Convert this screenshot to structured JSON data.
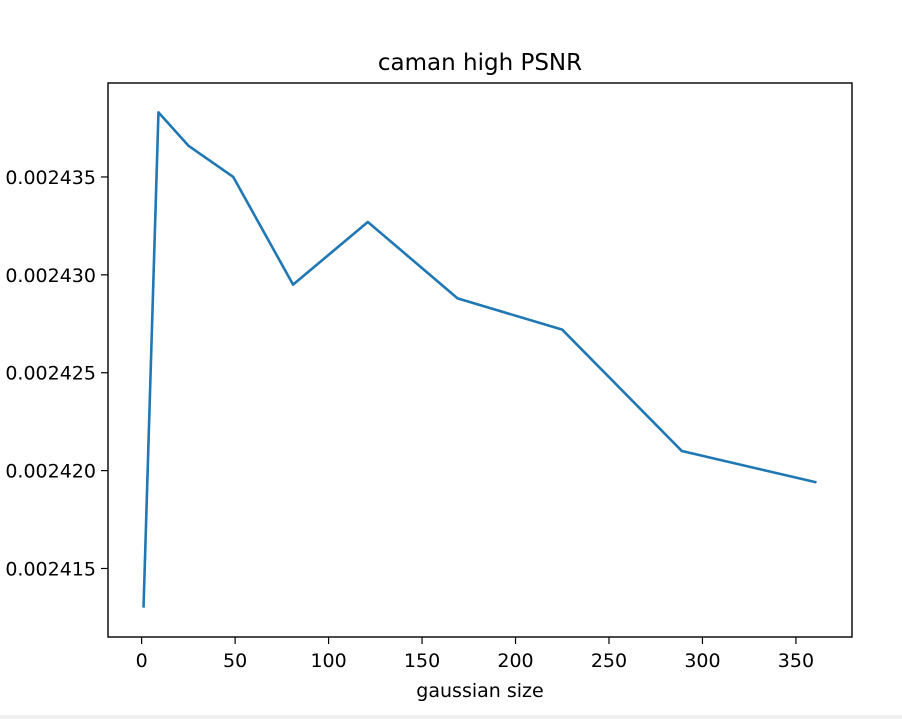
{
  "chart_data": {
    "type": "line",
    "title": "caman high PSNR",
    "xlabel": "gaussian size",
    "ylabel": "",
    "xlim": [
      -18,
      380
    ],
    "ylim": [
      0.0024115,
      0.0024398
    ],
    "x_ticks": [
      0,
      50,
      100,
      150,
      200,
      250,
      300,
      350
    ],
    "x_tick_labels": [
      "0",
      "50",
      "100",
      "150",
      "200",
      "250",
      "300",
      "350"
    ],
    "y_ticks": [
      0.002415,
      0.00242,
      0.002425,
      0.00243,
      0.002435
    ],
    "y_tick_labels": [
      "0.002415",
      "0.002420",
      "0.002425",
      "0.002430",
      "0.002435"
    ],
    "grid": false,
    "series": [
      {
        "color": "#1f77b4",
        "x": [
          1,
          9,
          25,
          49,
          81,
          121,
          169,
          225,
          289,
          361
        ],
        "y": [
          0.002413,
          0.0024383,
          0.0024366,
          0.002435,
          0.0024295,
          0.0024327,
          0.0024288,
          0.0024272,
          0.002421,
          0.0024194
        ]
      }
    ]
  }
}
